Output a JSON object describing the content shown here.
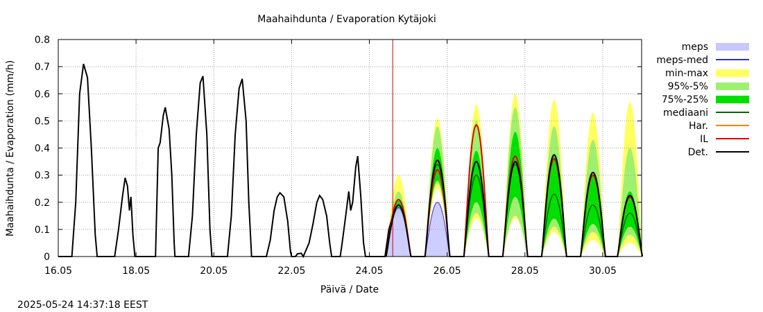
{
  "chart_data": {
    "type": "line",
    "title": "Maahaihdunta / Evaporation  Kytäjoki",
    "xlabel": "Päivä / Date",
    "ylabel": "Maahaihdunta / Evaporation (mm/h)",
    "timestamp": "2025-05-24 14:37:18 EEST",
    "xlim": [
      16.0,
      31.0
    ],
    "ylim": [
      0,
      0.8
    ],
    "x_ticks": [
      {
        "value": 16.0,
        "label": "16.05"
      },
      {
        "value": 18.0,
        "label": "18.05"
      },
      {
        "value": 20.0,
        "label": "20.05"
      },
      {
        "value": 22.0,
        "label": "22.05"
      },
      {
        "value": 24.0,
        "label": "24.05"
      },
      {
        "value": 26.0,
        "label": "26.05"
      },
      {
        "value": 28.0,
        "label": "28.05"
      },
      {
        "value": 30.0,
        "label": "30.05"
      }
    ],
    "y_ticks": [
      {
        "value": 0,
        "label": "0"
      },
      {
        "value": 0.1,
        "label": "0.1"
      },
      {
        "value": 0.2,
        "label": "0.2"
      },
      {
        "value": 0.3,
        "label": "0.3"
      },
      {
        "value": 0.4,
        "label": "0.4"
      },
      {
        "value": 0.5,
        "label": "0.5"
      },
      {
        "value": 0.6,
        "label": "0.6"
      },
      {
        "value": 0.7,
        "label": "0.7"
      },
      {
        "value": 0.8,
        "label": "0.8"
      }
    ],
    "grid": true,
    "forecast_start": 24.6,
    "legend_position": "right",
    "legend": [
      {
        "label": "meps",
        "type": "band",
        "color": "#c8c8ff"
      },
      {
        "label": "meps-med",
        "type": "line",
        "color": "#3030c0"
      },
      {
        "label": "min-max",
        "type": "band",
        "color": "#ffff60"
      },
      {
        "label": "95%-5%",
        "type": "band",
        "color": "#a0f070"
      },
      {
        "label": "75%-25%",
        "type": "band",
        "color": "#00e000"
      },
      {
        "label": "mediaani",
        "type": "line",
        "color": "#006400"
      },
      {
        "label": "Har.",
        "type": "line",
        "color": "#ff8000"
      },
      {
        "label": "IL",
        "type": "line",
        "color": "#e00000"
      },
      {
        "label": "Det.",
        "type": "line",
        "color": "#000000"
      }
    ],
    "observed": [
      {
        "x": 16.0,
        "y": 0
      },
      {
        "x": 16.35,
        "y": 0
      },
      {
        "x": 16.45,
        "y": 0.2
      },
      {
        "x": 16.55,
        "y": 0.6
      },
      {
        "x": 16.65,
        "y": 0.71
      },
      {
        "x": 16.75,
        "y": 0.66
      },
      {
        "x": 16.85,
        "y": 0.4
      },
      {
        "x": 16.95,
        "y": 0.08
      },
      {
        "x": 17.0,
        "y": 0
      },
      {
        "x": 17.45,
        "y": 0
      },
      {
        "x": 17.55,
        "y": 0.1
      },
      {
        "x": 17.65,
        "y": 0.22
      },
      {
        "x": 17.72,
        "y": 0.29
      },
      {
        "x": 17.78,
        "y": 0.26
      },
      {
        "x": 17.83,
        "y": 0.17
      },
      {
        "x": 17.87,
        "y": 0.22
      },
      {
        "x": 17.92,
        "y": 0.08
      },
      {
        "x": 17.97,
        "y": 0
      },
      {
        "x": 18.5,
        "y": 0
      },
      {
        "x": 18.57,
        "y": 0.4
      },
      {
        "x": 18.62,
        "y": 0.42
      },
      {
        "x": 18.7,
        "y": 0.52
      },
      {
        "x": 18.75,
        "y": 0.55
      },
      {
        "x": 18.85,
        "y": 0.47
      },
      {
        "x": 18.92,
        "y": 0.3
      },
      {
        "x": 18.98,
        "y": 0.05
      },
      {
        "x": 19.0,
        "y": 0
      },
      {
        "x": 19.35,
        "y": 0
      },
      {
        "x": 19.45,
        "y": 0.15
      },
      {
        "x": 19.55,
        "y": 0.45
      },
      {
        "x": 19.65,
        "y": 0.64
      },
      {
        "x": 19.72,
        "y": 0.665
      },
      {
        "x": 19.82,
        "y": 0.45
      },
      {
        "x": 19.9,
        "y": 0.1
      },
      {
        "x": 19.95,
        "y": 0
      },
      {
        "x": 20.35,
        "y": 0
      },
      {
        "x": 20.45,
        "y": 0.15
      },
      {
        "x": 20.55,
        "y": 0.45
      },
      {
        "x": 20.65,
        "y": 0.62
      },
      {
        "x": 20.73,
        "y": 0.655
      },
      {
        "x": 20.83,
        "y": 0.5
      },
      {
        "x": 20.9,
        "y": 0.2
      },
      {
        "x": 20.97,
        "y": 0
      },
      {
        "x": 21.35,
        "y": 0
      },
      {
        "x": 21.45,
        "y": 0.06
      },
      {
        "x": 21.55,
        "y": 0.17
      },
      {
        "x": 21.63,
        "y": 0.22
      },
      {
        "x": 21.7,
        "y": 0.235
      },
      {
        "x": 21.8,
        "y": 0.22
      },
      {
        "x": 21.9,
        "y": 0.13
      },
      {
        "x": 21.97,
        "y": 0.02
      },
      {
        "x": 22.0,
        "y": 0
      },
      {
        "x": 22.1,
        "y": 0
      },
      {
        "x": 22.15,
        "y": 0.01
      },
      {
        "x": 22.25,
        "y": 0.012
      },
      {
        "x": 22.3,
        "y": 0
      },
      {
        "x": 22.45,
        "y": 0.05
      },
      {
        "x": 22.55,
        "y": 0.12
      },
      {
        "x": 22.65,
        "y": 0.2
      },
      {
        "x": 22.72,
        "y": 0.225
      },
      {
        "x": 22.8,
        "y": 0.21
      },
      {
        "x": 22.9,
        "y": 0.15
      },
      {
        "x": 22.98,
        "y": 0.05
      },
      {
        "x": 23.03,
        "y": 0
      },
      {
        "x": 23.25,
        "y": 0
      },
      {
        "x": 23.3,
        "y": 0.05
      },
      {
        "x": 23.4,
        "y": 0.16
      },
      {
        "x": 23.47,
        "y": 0.24
      },
      {
        "x": 23.52,
        "y": 0.17
      },
      {
        "x": 23.57,
        "y": 0.2
      },
      {
        "x": 23.65,
        "y": 0.33
      },
      {
        "x": 23.7,
        "y": 0.37
      },
      {
        "x": 23.78,
        "y": 0.22
      },
      {
        "x": 23.85,
        "y": 0.05
      },
      {
        "x": 23.9,
        "y": 0
      },
      {
        "x": 24.4,
        "y": 0
      },
      {
        "x": 24.5,
        "y": 0.1
      },
      {
        "x": 24.6,
        "y": 0.15
      }
    ],
    "forecast_days": [
      24.75,
      25.75,
      26.75,
      27.75,
      28.75,
      29.75,
      30.7
    ],
    "forecast_halfwidth": 0.32,
    "min_max": [
      {
        "day": 24.75,
        "lo": 0.15,
        "hi": 0.3
      },
      {
        "day": 25.75,
        "lo": 0.25,
        "hi": 0.51
      },
      {
        "day": 26.75,
        "lo": 0.14,
        "hi": 0.56
      },
      {
        "day": 27.75,
        "lo": 0.14,
        "hi": 0.6
      },
      {
        "day": 28.75,
        "lo": 0.09,
        "hi": 0.58
      },
      {
        "day": 29.75,
        "lo": 0.06,
        "hi": 0.53
      },
      {
        "day": 30.7,
        "lo": 0.05,
        "hi": 0.57
      }
    ],
    "p95_5": [
      {
        "day": 24.75,
        "lo": 0.16,
        "hi": 0.24
      },
      {
        "day": 25.75,
        "lo": 0.27,
        "hi": 0.48
      },
      {
        "day": 26.75,
        "lo": 0.16,
        "hi": 0.5
      },
      {
        "day": 27.75,
        "lo": 0.15,
        "hi": 0.55
      },
      {
        "day": 28.75,
        "lo": 0.11,
        "hi": 0.48
      },
      {
        "day": 29.75,
        "lo": 0.09,
        "hi": 0.43
      },
      {
        "day": 30.7,
        "lo": 0.08,
        "hi": 0.4
      }
    ],
    "p75_25": [
      {
        "day": 24.75,
        "lo": 0.17,
        "hi": 0.21
      },
      {
        "day": 25.75,
        "lo": 0.28,
        "hi": 0.4
      },
      {
        "day": 26.75,
        "lo": 0.2,
        "hi": 0.39
      },
      {
        "day": 27.75,
        "lo": 0.22,
        "hi": 0.46
      },
      {
        "day": 28.75,
        "lo": 0.14,
        "hi": 0.37
      },
      {
        "day": 29.75,
        "lo": 0.12,
        "hi": 0.3
      },
      {
        "day": 30.7,
        "lo": 0.11,
        "hi": 0.24
      }
    ],
    "mediaani_peaks": [
      0.19,
      0.34,
      0.3,
      0.34,
      0.23,
      0.19,
      0.16
    ],
    "il_peaks": [
      0.21,
      0.32,
      0.485,
      0.37,
      0.36,
      0.3,
      0.22
    ],
    "det_peaks": [
      0.19,
      0.355,
      0.35,
      0.35,
      0.375,
      0.31,
      0.225
    ],
    "meps_peaks": [
      0.18,
      0.2
    ],
    "meps_days": [
      24.75,
      25.75
    ]
  }
}
